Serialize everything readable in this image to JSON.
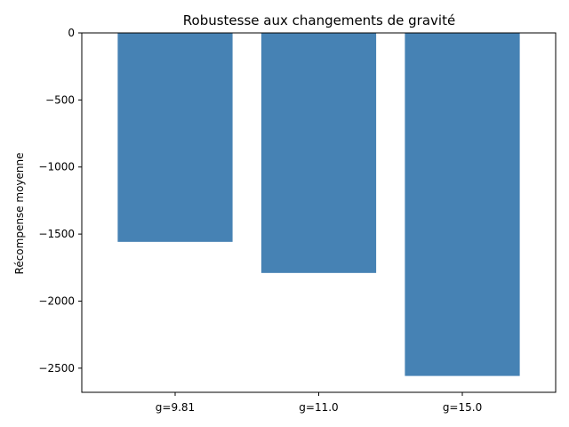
{
  "chart_data": {
    "type": "bar",
    "title": "Robustesse aux changements de gravité",
    "xlabel": "",
    "ylabel": "Récompense moyenne",
    "categories": [
      "g=9.81",
      "g=11.0",
      "g=15.0"
    ],
    "values": [
      -1558,
      -1790,
      -2558
    ],
    "ylim": [
      -2680,
      0
    ],
    "yticks": [
      0,
      -500,
      -1000,
      -1500,
      -2000,
      -2500
    ],
    "ytick_labels": [
      "0",
      "−500",
      "−1000",
      "−1500",
      "−2000",
      "−2500"
    ],
    "bar_color": "#4682b4",
    "grid": false
  }
}
